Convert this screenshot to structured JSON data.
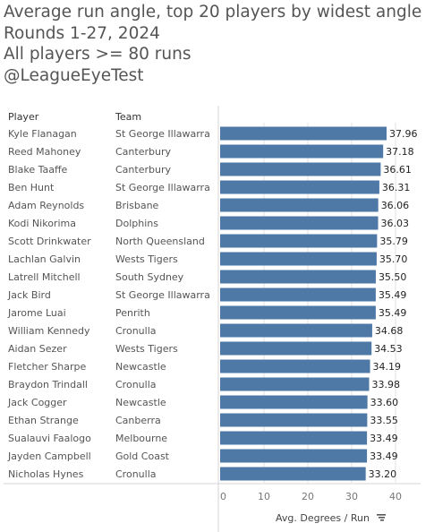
{
  "titles": [
    "Average run angle, top 20 players by widest angle",
    "Rounds 1-27, 2024",
    "All players >= 80 runs",
    "@LeagueEyeTest"
  ],
  "table_headers": {
    "player": "Player",
    "team": "Team"
  },
  "colors": {
    "bar": "#4e79a7",
    "grid": "#e2e2e2",
    "divider": "#d4d4d4"
  },
  "chart_data": {
    "type": "bar",
    "orientation": "horizontal",
    "xlabel": "Avg. Degrees / Run",
    "xlim": [
      0,
      44
    ],
    "xticks": [
      0,
      10,
      20,
      30,
      40
    ],
    "sort_icon": "sort-descending-icon",
    "rows": [
      {
        "player": "Kyle Flanagan",
        "team": "St George Illawarra",
        "value": 37.96,
        "label": "37.96"
      },
      {
        "player": "Reed Mahoney",
        "team": "Canterbury",
        "value": 37.18,
        "label": "37.18"
      },
      {
        "player": "Blake Taaffe",
        "team": "Canterbury",
        "value": 36.61,
        "label": "36.61"
      },
      {
        "player": "Ben Hunt",
        "team": "St George Illawarra",
        "value": 36.31,
        "label": "36.31"
      },
      {
        "player": "Adam Reynolds",
        "team": "Brisbane",
        "value": 36.06,
        "label": "36.06"
      },
      {
        "player": "Kodi Nikorima",
        "team": "Dolphins",
        "value": 36.03,
        "label": "36.03"
      },
      {
        "player": "Scott Drinkwater",
        "team": "North Queensland",
        "value": 35.79,
        "label": "35.79"
      },
      {
        "player": "Lachlan Galvin",
        "team": "Wests Tigers",
        "value": 35.7,
        "label": "35.70"
      },
      {
        "player": "Latrell Mitchell",
        "team": "South Sydney",
        "value": 35.5,
        "label": "35.50"
      },
      {
        "player": "Jack Bird",
        "team": "St George Illawarra",
        "value": 35.49,
        "label": "35.49"
      },
      {
        "player": "Jarome Luai",
        "team": "Penrith",
        "value": 35.49,
        "label": "35.49"
      },
      {
        "player": "William Kennedy",
        "team": "Cronulla",
        "value": 34.68,
        "label": "34.68"
      },
      {
        "player": "Aidan Sezer",
        "team": "Wests Tigers",
        "value": 34.53,
        "label": "34.53"
      },
      {
        "player": "Fletcher Sharpe",
        "team": "Newcastle",
        "value": 34.19,
        "label": "34.19"
      },
      {
        "player": "Braydon Trindall",
        "team": "Cronulla",
        "value": 33.98,
        "label": "33.98"
      },
      {
        "player": "Jack Cogger",
        "team": "Newcastle",
        "value": 33.6,
        "label": "33.60"
      },
      {
        "player": "Ethan Strange",
        "team": "Canberra",
        "value": 33.55,
        "label": "33.55"
      },
      {
        "player": "Sualauvi Faalogo",
        "team": "Melbourne",
        "value": 33.49,
        "label": "33.49"
      },
      {
        "player": "Jayden Campbell",
        "team": "Gold Coast",
        "value": 33.49,
        "label": "33.49"
      },
      {
        "player": "Nicholas Hynes",
        "team": "Cronulla",
        "value": 33.2,
        "label": "33.20"
      }
    ]
  }
}
